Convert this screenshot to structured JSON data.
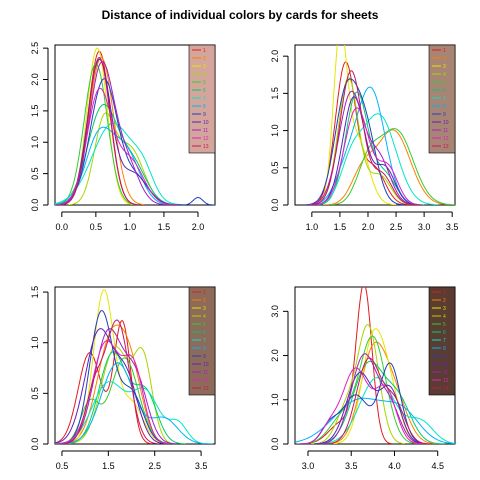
{
  "title": "Distance of individual colors by cards for sheets",
  "legend_numbers": [
    "1",
    "2",
    "3",
    "4",
    "5",
    "6",
    "7",
    "8",
    "9",
    "10",
    "11",
    "12",
    "13"
  ],
  "palette": [
    "#e41a1c",
    "#ff7f00",
    "#e6e600",
    "#a6d600",
    "#33cc33",
    "#00cc66",
    "#00e6c8",
    "#00b2ff",
    "#1f3fbf",
    "#5a1fbf",
    "#a01fbf",
    "#e01fbf",
    "#c2185b"
  ],
  "chart_data": [
    {
      "type": "line",
      "title": "",
      "xlabel": "",
      "ylabel": "",
      "xlim": [
        -0.1,
        2.25
      ],
      "ylim": [
        0,
        2.55
      ],
      "xticks": [
        0.0,
        0.5,
        1.0,
        1.5,
        2.0
      ],
      "yticks": [
        0.0,
        0.5,
        1.0,
        1.5,
        2.0,
        2.5
      ],
      "xtick_labels": [
        "0.0",
        "0.5",
        "1.0",
        "1.5",
        "2.0"
      ],
      "ytick_labels": [
        "0.0",
        "0.5",
        "1.0",
        "1.5",
        "2.0",
        "2.5"
      ],
      "legend": {
        "placement": "top-right",
        "background": "#d4a59a"
      },
      "series": [
        {
          "peaks": [
            [
              0.55,
              2.45,
              0.16
            ]
          ]
        },
        {
          "peaks": [
            [
              0.58,
              2.35,
              0.18
            ]
          ]
        },
        {
          "peaks": [
            [
              0.52,
              2.5,
              0.15
            ]
          ]
        },
        {
          "peaks": [
            [
              0.62,
              1.3,
              0.15
            ],
            [
              1.0,
              0.9,
              0.2
            ]
          ]
        },
        {
          "peaks": [
            [
              0.5,
              2.25,
              0.17
            ]
          ]
        },
        {
          "peaks": [
            [
              0.6,
              1.55,
              0.22
            ],
            [
              1.05,
              0.6,
              0.2
            ]
          ]
        },
        {
          "peaks": [
            [
              0.75,
              1.3,
              0.3
            ],
            [
              1.2,
              0.35,
              0.15
            ]
          ]
        },
        {
          "peaks": [
            [
              0.55,
              1.1,
              0.2
            ],
            [
              0.95,
              0.8,
              0.2
            ]
          ]
        },
        {
          "peaks": [
            [
              0.62,
              2.0,
              0.2
            ],
            [
              1.1,
              0.4,
              0.18
            ],
            [
              2.0,
              0.12,
              0.07
            ]
          ]
        },
        {
          "peaks": [
            [
              0.55,
              2.3,
              0.17
            ],
            [
              1.05,
              0.5,
              0.2
            ]
          ]
        },
        {
          "peaks": [
            [
              0.58,
              2.2,
              0.18
            ],
            [
              0.95,
              0.65,
              0.18
            ]
          ]
        },
        {
          "peaks": [
            [
              0.55,
              1.8,
              0.18
            ],
            [
              1.0,
              0.7,
              0.2
            ]
          ]
        },
        {
          "peaks": [
            [
              0.55,
              2.35,
              0.16
            ]
          ]
        }
      ]
    },
    {
      "type": "line",
      "title": "",
      "xlabel": "",
      "ylabel": "",
      "xlim": [
        0.7,
        3.55
      ],
      "ylim": [
        0,
        2.15
      ],
      "xticks": [
        1.0,
        1.5,
        2.0,
        2.5,
        3.0,
        3.5
      ],
      "yticks": [
        0.0,
        0.5,
        1.0,
        1.5,
        2.0
      ],
      "xtick_labels": [
        "1.0",
        "1.5",
        "2.0",
        "2.5",
        "3.0",
        "3.5"
      ],
      "ytick_labels": [
        "0.0",
        "0.5",
        "1.0",
        "1.5",
        "2.0"
      ],
      "legend": {
        "placement": "top-right",
        "background": "#a88474"
      },
      "series": [
        {
          "peaks": [
            [
              1.6,
              1.9,
              0.18
            ],
            [
              2.1,
              0.5,
              0.2
            ]
          ]
        },
        {
          "peaks": [
            [
              2.45,
              1.0,
              0.3
            ],
            [
              1.9,
              0.4,
              0.2
            ]
          ]
        },
        {
          "peaks": [
            [
              1.5,
              2.1,
              0.12
            ],
            [
              1.8,
              0.9,
              0.2
            ]
          ]
        },
        {
          "peaks": [
            [
              1.65,
              1.7,
              0.18
            ],
            [
              2.2,
              0.4,
              0.2
            ]
          ]
        },
        {
          "peaks": [
            [
              2.5,
              1.0,
              0.3
            ],
            [
              2.0,
              0.5,
              0.2
            ]
          ]
        },
        {
          "peaks": [
            [
              1.8,
              1.5,
              0.2
            ],
            [
              2.3,
              0.4,
              0.2
            ]
          ]
        },
        {
          "peaks": [
            [
              2.2,
              1.2,
              0.3
            ],
            [
              1.7,
              0.5,
              0.2
            ]
          ]
        },
        {
          "peaks": [
            [
              2.05,
              1.55,
              0.25
            ],
            [
              1.6,
              0.4,
              0.2
            ]
          ]
        },
        {
          "peaks": [
            [
              1.6,
              1.4,
              0.2
            ],
            [
              1.95,
              1.0,
              0.2
            ]
          ]
        },
        {
          "peaks": [
            [
              1.75,
              1.45,
              0.2
            ],
            [
              2.3,
              0.5,
              0.18
            ]
          ]
        },
        {
          "peaks": [
            [
              1.7,
              1.5,
              0.22
            ],
            [
              2.2,
              0.6,
              0.2
            ]
          ]
        },
        {
          "peaks": [
            [
              1.8,
              1.3,
              0.22
            ],
            [
              2.35,
              0.5,
              0.18
            ]
          ]
        },
        {
          "peaks": [
            [
              1.7,
              1.8,
              0.2
            ],
            [
              2.25,
              0.4,
              0.18
            ]
          ]
        }
      ]
    },
    {
      "type": "line",
      "title": "",
      "xlabel": "",
      "ylabel": "",
      "xlim": [
        0.35,
        3.8
      ],
      "ylim": [
        0,
        1.55
      ],
      "xticks": [
        0.5,
        1.5,
        2.5,
        3.5
      ],
      "yticks": [
        0.0,
        0.5,
        1.0,
        1.5
      ],
      "xtick_labels": [
        "0.5",
        "1.5",
        "2.5",
        "3.5"
      ],
      "ytick_labels": [
        "0.0",
        "0.5",
        "1.0",
        "1.5"
      ],
      "legend": {
        "placement": "top-right",
        "background": "#8e6a5a"
      },
      "series": [
        {
          "peaks": [
            [
              1.1,
              0.9,
              0.25
            ],
            [
              1.8,
              1.2,
              0.18
            ]
          ]
        },
        {
          "peaks": [
            [
              1.55,
              1.0,
              0.3
            ],
            [
              2.0,
              0.6,
              0.25
            ]
          ]
        },
        {
          "peaks": [
            [
              1.4,
              1.5,
              0.22
            ],
            [
              2.0,
              0.4,
              0.25
            ]
          ]
        },
        {
          "peaks": [
            [
              1.65,
              0.95,
              0.3
            ],
            [
              2.25,
              0.8,
              0.2
            ]
          ]
        },
        {
          "peaks": [
            [
              1.85,
              0.85,
              0.3
            ],
            [
              1.1,
              0.4,
              0.2
            ]
          ]
        },
        {
          "peaks": [
            [
              1.6,
              0.9,
              0.3
            ],
            [
              2.3,
              0.5,
              0.25
            ]
          ]
        },
        {
          "peaks": [
            [
              1.5,
              0.6,
              0.35
            ],
            [
              2.3,
              0.5,
              0.3
            ],
            [
              3.0,
              0.2,
              0.2
            ]
          ]
        },
        {
          "peaks": [
            [
              1.7,
              0.8,
              0.35
            ],
            [
              2.7,
              0.25,
              0.3
            ]
          ]
        },
        {
          "peaks": [
            [
              1.35,
              1.3,
              0.25
            ],
            [
              2.0,
              0.5,
              0.25
            ]
          ]
        },
        {
          "peaks": [
            [
              1.3,
              1.1,
              0.3
            ],
            [
              1.9,
              0.6,
              0.25
            ]
          ]
        },
        {
          "peaks": [
            [
              1.5,
              1.1,
              0.3
            ],
            [
              2.1,
              0.6,
              0.25
            ]
          ]
        },
        {
          "peaks": [
            [
              1.45,
              1.0,
              0.3
            ],
            [
              2.05,
              0.7,
              0.22
            ]
          ]
        },
        {
          "peaks": [
            [
              1.7,
              1.2,
              0.25
            ],
            [
              1.2,
              0.5,
              0.2
            ]
          ]
        }
      ]
    },
    {
      "type": "line",
      "title": "",
      "xlabel": "",
      "ylabel": "",
      "xlim": [
        2.85,
        4.7
      ],
      "ylim": [
        0,
        3.55
      ],
      "xticks": [
        3.0,
        3.5,
        4.0,
        4.5
      ],
      "yticks": [
        0.0,
        1.0,
        2.0,
        3.0
      ],
      "xtick_labels": [
        "3.0",
        "3.5",
        "4.0",
        "4.5"
      ],
      "ytick_labels": [
        "0.0",
        "1.0",
        "2.0",
        "3.0"
      ],
      "legend": {
        "placement": "top-right",
        "background": "#5a3c32"
      },
      "series": [
        {
          "peaks": [
            [
              3.65,
              3.5,
              0.09
            ],
            [
              3.4,
              0.5,
              0.15
            ]
          ]
        },
        {
          "peaks": [
            [
              3.75,
              2.0,
              0.15
            ],
            [
              4.0,
              1.0,
              0.15
            ]
          ]
        },
        {
          "peaks": [
            [
              3.75,
              2.3,
              0.13
            ],
            [
              3.95,
              1.0,
              0.12
            ]
          ]
        },
        {
          "peaks": [
            [
              3.7,
              2.6,
              0.12
            ],
            [
              3.45,
              0.8,
              0.12
            ]
          ]
        },
        {
          "peaks": [
            [
              3.75,
              2.4,
              0.15
            ],
            [
              3.4,
              0.6,
              0.15
            ]
          ]
        },
        {
          "peaks": [
            [
              3.7,
              1.8,
              0.18
            ],
            [
              4.05,
              0.9,
              0.15
            ]
          ]
        },
        {
          "peaks": [
            [
              3.8,
              1.5,
              0.2
            ],
            [
              4.3,
              0.5,
              0.15
            ]
          ]
        },
        {
          "peaks": [
            [
              3.6,
              1.0,
              0.3
            ],
            [
              4.1,
              0.6,
              0.2
            ]
          ]
        },
        {
          "peaks": [
            [
              3.95,
              1.8,
              0.12
            ],
            [
              3.55,
              1.1,
              0.15
            ],
            [
              3.25,
              0.4,
              0.1
            ]
          ]
        },
        {
          "peaks": [
            [
              3.6,
              1.6,
              0.15
            ],
            [
              3.95,
              1.2,
              0.12
            ]
          ]
        },
        {
          "peaks": [
            [
              3.65,
              2.0,
              0.15
            ],
            [
              3.95,
              0.8,
              0.12
            ]
          ]
        },
        {
          "peaks": [
            [
              3.55,
              1.7,
              0.15
            ],
            [
              3.9,
              1.2,
              0.12
            ],
            [
              3.25,
              0.35,
              0.1
            ]
          ]
        },
        {
          "peaks": [
            [
              3.7,
              1.9,
              0.14
            ],
            [
              4.0,
              0.9,
              0.12
            ]
          ]
        }
      ]
    }
  ]
}
